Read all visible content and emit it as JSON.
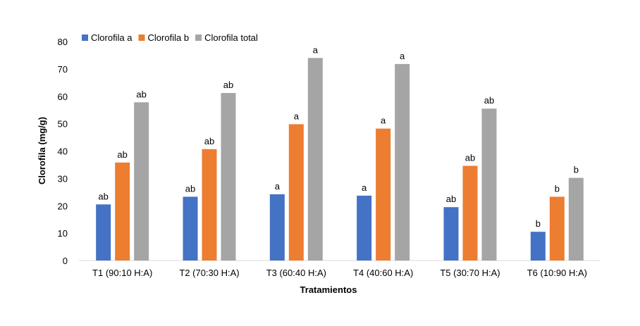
{
  "chart_data": {
    "type": "bar",
    "title": "",
    "xlabel": "Tratamientos",
    "ylabel": "Clorofila (mg/g)",
    "ylim": [
      0,
      80
    ],
    "yticks": [
      0,
      10,
      20,
      30,
      40,
      50,
      60,
      70,
      80
    ],
    "grid": false,
    "legend_position": "top-left",
    "categories": [
      "T1 (90:10 H:A)",
      "T2 (70:30 H:A)",
      "T3 (60:40 H:A)",
      "T4 (40:60 H:A)",
      "T5 (30:70 H:A)",
      "T6 (10:90 H:A)"
    ],
    "series": [
      {
        "name": "Clorofila a",
        "color": "#4472C4",
        "values": [
          20.5,
          23.3,
          24.2,
          23.7,
          19.5,
          10.5
        ],
        "labels": [
          "ab",
          "ab",
          "a",
          "a",
          "ab",
          "b"
        ]
      },
      {
        "name": "Clorofila b",
        "color": "#ED7D31",
        "values": [
          35.8,
          40.7,
          49.8,
          48.2,
          34.6,
          23.3
        ],
        "labels": [
          "ab",
          "ab",
          "a",
          "a",
          "ab",
          "b"
        ]
      },
      {
        "name": "Clorofila total",
        "color": "#A5A5A5",
        "values": [
          57.8,
          61.2,
          74.0,
          71.8,
          55.5,
          30.2
        ],
        "labels": [
          "ab",
          "ab",
          "a",
          "a",
          "ab",
          "b"
        ]
      }
    ]
  }
}
